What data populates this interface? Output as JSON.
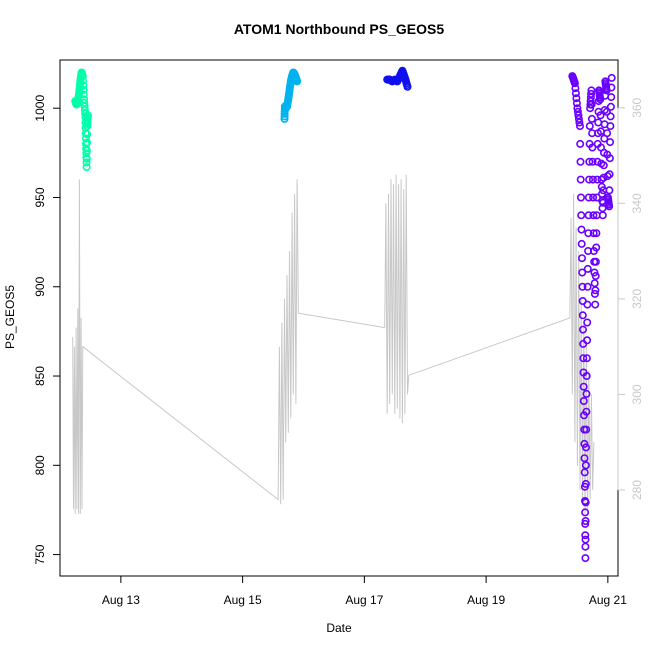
{
  "chart_data": {
    "type": "scatter",
    "title": "ATOM1 Northbound PS_GEOS5",
    "xlabel": "Date",
    "ylabel": "PS_GEOS5",
    "x_ticks": [
      "Aug 13",
      "Aug 15",
      "Aug 17",
      "Aug 19",
      "Aug 21"
    ],
    "y_ticks": [
      "750",
      "800",
      "850",
      "900",
      "950",
      "1000"
    ],
    "y2_ticks": [
      "280",
      "300",
      "320",
      "340",
      "360"
    ],
    "xlim": [
      "Aug 12 00:00",
      "Aug 21 04:00"
    ],
    "ylim": [
      738,
      1027
    ],
    "y2lim": [
      262,
      370
    ],
    "grid": false,
    "colors": {
      "points": [
        "#00ffaa",
        "#00b2ee",
        "#1010ee",
        "#6a00ff"
      ],
      "secondary_line": "#c8c8c8"
    },
    "series": [
      {
        "axis": "left",
        "color": "#00ffaa",
        "points": [
          [
            "Aug 12 06:00",
            1004
          ],
          [
            "Aug 12 06:30",
            1002
          ],
          [
            "Aug 12 07:00",
            1003
          ],
          [
            "Aug 12 07:30",
            1008
          ],
          [
            "Aug 12 08:00",
            1015
          ],
          [
            "Aug 12 08:30",
            1020
          ],
          [
            "Aug 12 09:00",
            1018
          ],
          [
            "Aug 12 09:30",
            1005
          ],
          [
            "Aug 12 10:00",
            995
          ],
          [
            "Aug 12 10:15",
            980
          ],
          [
            "Aug 12 10:30",
            967
          ],
          [
            "Aug 12 10:45",
            990
          ],
          [
            "Aug 12 11:00",
            996
          ]
        ]
      },
      {
        "axis": "left",
        "color": "#00b2ee",
        "points": [
          [
            "Aug 15 16:30",
            994
          ],
          [
            "Aug 15 16:40",
            1001
          ],
          [
            "Aug 15 17:00",
            1000
          ],
          [
            "Aug 15 17:30",
            1001
          ],
          [
            "Aug 15 18:00",
            1005
          ],
          [
            "Aug 15 18:30",
            1010
          ],
          [
            "Aug 15 19:00",
            1015
          ],
          [
            "Aug 15 19:30",
            1018
          ],
          [
            "Aug 15 20:00",
            1020
          ],
          [
            "Aug 15 20:30",
            1019
          ],
          [
            "Aug 15 21:00",
            1017
          ],
          [
            "Aug 15 21:30",
            1015
          ]
        ]
      },
      {
        "axis": "left",
        "color": "#1010ee",
        "points": [
          [
            "Aug 17 09:00",
            1016
          ],
          [
            "Aug 17 10:00",
            1016
          ],
          [
            "Aug 17 11:00",
            1015
          ],
          [
            "Aug 17 12:00",
            1016
          ],
          [
            "Aug 17 13:00",
            1015
          ],
          [
            "Aug 17 14:00",
            1018
          ],
          [
            "Aug 17 15:00",
            1021
          ],
          [
            "Aug 17 16:00",
            1017
          ],
          [
            "Aug 17 17:00",
            1012
          ]
        ]
      },
      {
        "axis": "left",
        "color": "#6a00ff",
        "points": [
          [
            "Aug 20 10:00",
            1018
          ],
          [
            "Aug 20 11:00",
            1014
          ],
          [
            "Aug 20 12:00",
            1000
          ],
          [
            "Aug 20 13:00",
            990
          ],
          [
            "Aug 20 13:30",
            940
          ],
          [
            "Aug 20 14:00",
            900
          ],
          [
            "Aug 20 14:20",
            860
          ],
          [
            "Aug 20 14:40",
            820
          ],
          [
            "Aug 20 15:00",
            780
          ],
          [
            "Aug 20 15:10",
            748
          ],
          [
            "Aug 20 15:20",
            800
          ],
          [
            "Aug 20 15:40",
            850
          ],
          [
            "Aug 20 16:00",
            900
          ],
          [
            "Aug 20 16:30",
            950
          ],
          [
            "Aug 20 17:00",
            1000
          ],
          [
            "Aug 20 17:30",
            1010
          ],
          [
            "Aug 20 18:00",
            970
          ],
          [
            "Aug 20 18:30",
            920
          ],
          [
            "Aug 20 19:00",
            890
          ],
          [
            "Aug 20 19:30",
            930
          ],
          [
            "Aug 20 20:00",
            980
          ],
          [
            "Aug 20 20:30",
            1010
          ],
          [
            "Aug 20 21:00",
            1005
          ],
          [
            "Aug 20 21:30",
            960
          ],
          [
            "Aug 20 22:00",
            940
          ],
          [
            "Aug 20 22:30",
            975
          ],
          [
            "Aug 20 23:00",
            1015
          ],
          [
            "Aug 20 23:30",
            1010
          ],
          [
            "Aug 21 00:00",
            950
          ],
          [
            "Aug 21 00:30",
            945
          ],
          [
            "Aug 21 01:00",
            990
          ],
          [
            "Aug 21 01:30",
            1017
          ]
        ]
      },
      {
        "axis": "right",
        "type": "line",
        "color": "#c8c8c8",
        "points": [
          [
            "Aug 12 05:00",
            312
          ],
          [
            "Aug 12 05:20",
            276
          ],
          [
            "Aug 12 05:40",
            310
          ],
          [
            "Aug 12 06:00",
            275
          ],
          [
            "Aug 12 06:20",
            314
          ],
          [
            "Aug 12 06:40",
            276
          ],
          [
            "Aug 12 07:00",
            318
          ],
          [
            "Aug 12 07:20",
            275
          ],
          [
            "Aug 12 07:40",
            345
          ],
          [
            "Aug 12 08:00",
            275
          ],
          [
            "Aug 12 08:20",
            316
          ],
          [
            "Aug 12 08:40",
            276
          ],
          [
            "Aug 12 09:00",
            310
          ],
          [
            "Aug 15 14:00",
            278
          ],
          [
            "Aug 15 14:30",
            310
          ],
          [
            "Aug 15 15:00",
            277
          ],
          [
            "Aug 15 15:30",
            315
          ],
          [
            "Aug 15 16:00",
            278
          ],
          [
            "Aug 15 16:30",
            320
          ],
          [
            "Aug 15 17:00",
            290
          ],
          [
            "Aug 15 17:30",
            325
          ],
          [
            "Aug 15 18:00",
            292
          ],
          [
            "Aug 15 18:30",
            330
          ],
          [
            "Aug 15 19:00",
            295
          ],
          [
            "Aug 15 19:30",
            338
          ],
          [
            "Aug 15 20:00",
            300
          ],
          [
            "Aug 15 20:30",
            342
          ],
          [
            "Aug 15 21:00",
            298
          ],
          [
            "Aug 15 21:30",
            345
          ],
          [
            "Aug 15 22:00",
            317
          ],
          [
            "Aug 17 08:00",
            314
          ],
          [
            "Aug 17 08:30",
            340
          ],
          [
            "Aug 17 09:00",
            296
          ],
          [
            "Aug 17 09:30",
            342
          ],
          [
            "Aug 17 10:00",
            298
          ],
          [
            "Aug 17 10:30",
            345
          ],
          [
            "Aug 17 11:00",
            300
          ],
          [
            "Aug 17 11:30",
            344
          ],
          [
            "Aug 17 12:00",
            296
          ],
          [
            "Aug 17 12:30",
            346
          ],
          [
            "Aug 17 13:00",
            297
          ],
          [
            "Aug 17 13:30",
            344
          ],
          [
            "Aug 17 14:00",
            295
          ],
          [
            "Aug 17 14:30",
            345
          ],
          [
            "Aug 17 15:00",
            294
          ],
          [
            "Aug 17 15:30",
            343
          ],
          [
            "Aug 17 16:00",
            296
          ],
          [
            "Aug 17 16:30",
            346
          ],
          [
            "Aug 17 17:00",
            300
          ],
          [
            "Aug 17 17:30",
            304
          ],
          [
            "Aug 20 09:00",
            316
          ],
          [
            "Aug 20 09:30",
            337
          ],
          [
            "Aug 20 10:00",
            300
          ],
          [
            "Aug 20 10:30",
            342
          ],
          [
            "Aug 20 11:00",
            290
          ],
          [
            "Aug 20 11:30",
            335
          ],
          [
            "Aug 20 12:00",
            285
          ],
          [
            "Aug 20 12:30",
            330
          ],
          [
            "Aug 20 13:00",
            280
          ],
          [
            "Aug 20 13:30",
            320
          ],
          [
            "Aug 20 14:00",
            277
          ],
          [
            "Aug 20 14:30",
            315
          ],
          [
            "Aug 20 15:00",
            275
          ],
          [
            "Aug 20 15:30",
            310
          ],
          [
            "Aug 20 16:00",
            276
          ],
          [
            "Aug 20 16:30",
            305
          ],
          [
            "Aug 20 17:00",
            278
          ],
          [
            "Aug 20 17:30",
            300
          ],
          [
            "Aug 20 18:00",
            280
          ],
          [
            "Aug 20 18:30",
            290
          ]
        ]
      }
    ]
  }
}
